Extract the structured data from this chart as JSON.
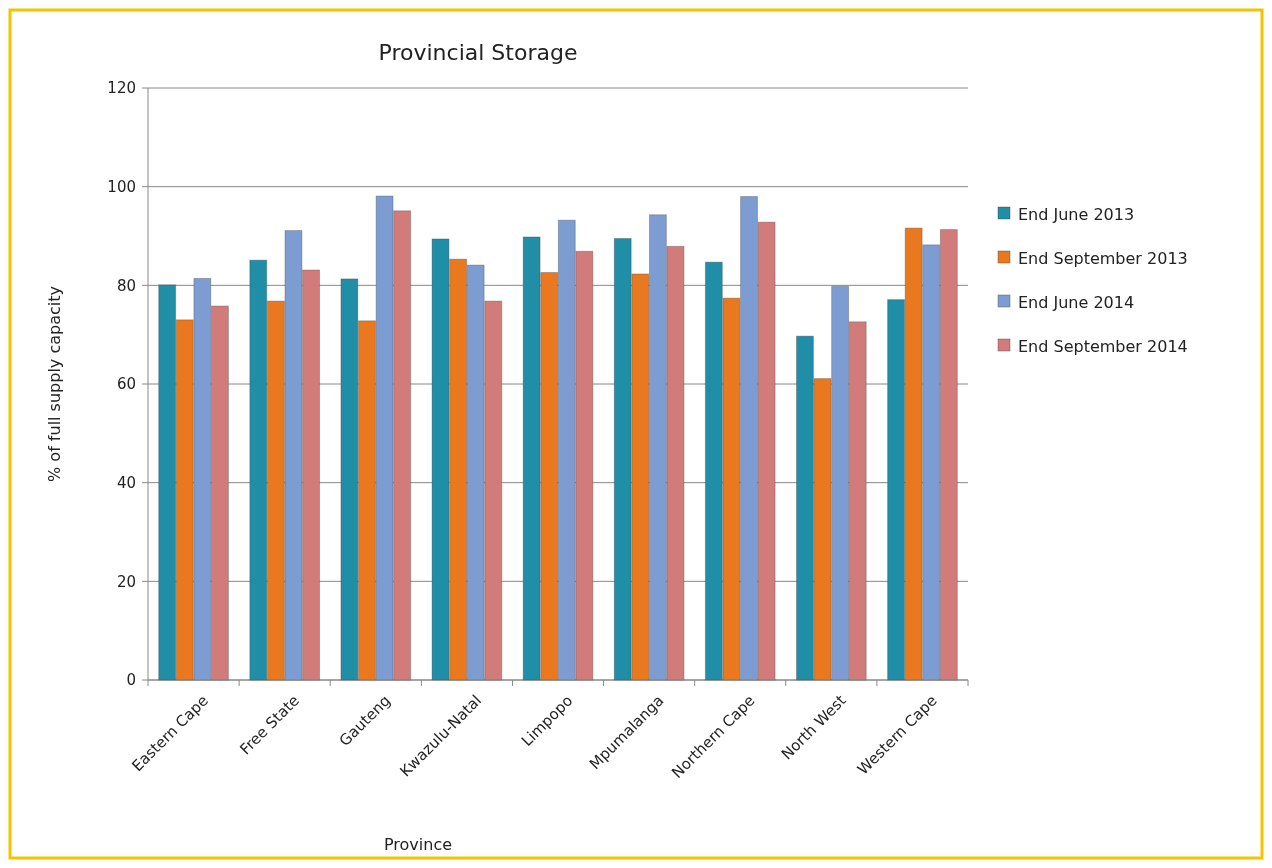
{
  "chart_data": {
    "type": "bar",
    "title": "Provincial Storage",
    "xlabel": "Province",
    "ylabel": "% of full supply capacity",
    "categories": [
      "Eastern Cape",
      "Free State",
      "Gauteng",
      "Kwazulu-Natal",
      "Limpopo",
      "Mpumalanga",
      "Northern Cape",
      "North West",
      "Western Cape"
    ],
    "series": [
      {
        "name": "End June 2013",
        "color": "#1f8ea6",
        "values": [
          80.1,
          85.1,
          81.3,
          89.4,
          89.8,
          89.5,
          84.7,
          69.7,
          77.1
        ]
      },
      {
        "name": "End September 2013",
        "color": "#e9781f",
        "values": [
          73,
          76.8,
          72.8,
          85.3,
          82.6,
          82.3,
          77.4,
          61.1,
          91.6
        ]
      },
      {
        "name": "End June 2014",
        "color": "#7d9dd2",
        "values": [
          81.4,
          91.1,
          98.1,
          84.1,
          93.2,
          94.3,
          98,
          79.8,
          88.2
        ]
      },
      {
        "name": "End September 2014",
        "color": "#d27b7b",
        "values": [
          75.8,
          83.1,
          95.1,
          76.8,
          86.9,
          87.9,
          92.8,
          72.6,
          91.3
        ]
      }
    ],
    "ylim": [
      0,
      120
    ],
    "yticks": [
      0,
      20,
      40,
      60,
      80,
      100,
      120
    ],
    "grid": "y",
    "legend": "right"
  }
}
